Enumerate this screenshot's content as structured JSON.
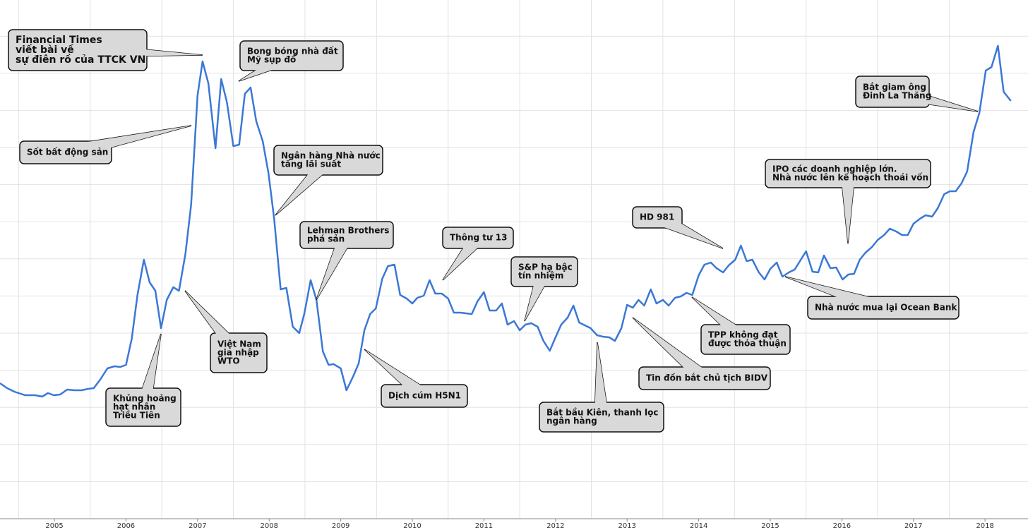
{
  "chart_data": {
    "type": "line",
    "series": [
      {
        "color": "#3a78d6",
        "x": [
          2004.24,
          2004.34,
          2004.44,
          2004.59,
          2004.73,
          2004.83,
          2004.91,
          2004.99,
          2005.08,
          2005.18,
          2005.28,
          2005.38,
          2005.47,
          2005.55,
          2005.64,
          2005.74,
          2005.84,
          2005.92,
          2006.0,
          2006.08,
          2006.16,
          2006.25,
          2006.33,
          2006.41,
          2006.49,
          2006.57,
          2006.66,
          2006.74,
          2006.83,
          2006.91,
          2007.0,
          2007.07,
          2007.15,
          2007.25,
          2007.33,
          2007.41,
          2007.5,
          2007.58,
          2007.66,
          2007.74,
          2007.82,
          2007.91,
          2007.99,
          2008.07,
          2008.16,
          2008.24,
          2008.33,
          2008.42,
          2008.49,
          2008.58,
          2008.66,
          2008.75,
          2008.83,
          2008.9,
          2009.0,
          2009.08,
          2009.17,
          2009.25,
          2009.33,
          2009.41,
          2009.49,
          2009.58,
          2009.66,
          2009.75,
          2009.83,
          2009.92,
          2010.0,
          2010.07,
          2010.16,
          2010.24,
          2010.32,
          2010.41,
          2010.5,
          2010.58,
          2010.67,
          2010.75,
          2010.83,
          2010.91,
          2011.0,
          2011.08,
          2011.17,
          2011.25,
          2011.33,
          2011.42,
          2011.5,
          2011.58,
          2011.66,
          2011.75,
          2011.83,
          2011.92,
          2012.0,
          2012.08,
          2012.17,
          2012.25,
          2012.33,
          2012.41,
          2012.49,
          2012.58,
          2012.66,
          2012.75,
          2012.83,
          2012.92,
          2013.0,
          2013.08,
          2013.16,
          2013.24,
          2013.33,
          2013.41,
          2013.5,
          2013.58,
          2013.67,
          2013.75,
          2013.83,
          2013.91,
          2014.0,
          2014.08,
          2014.17,
          2014.25,
          2014.34,
          2014.42,
          2014.51,
          2014.59,
          2014.67,
          2014.75,
          2014.84,
          2014.92,
          2015.0,
          2015.09,
          2015.17,
          2015.26,
          2015.34,
          2015.42,
          2015.5,
          2015.59,
          2015.67,
          2015.75,
          2015.84,
          2015.92,
          2016.01,
          2016.09,
          2016.17,
          2016.25,
          2016.33,
          2016.42,
          2016.5,
          2016.59,
          2016.67,
          2016.76,
          2016.84,
          2016.92,
          2017.0,
          2017.09,
          2017.17,
          2017.26,
          2017.34,
          2017.43,
          2017.51,
          2017.59,
          2017.67,
          2017.75,
          2017.84,
          2017.92,
          2018.01,
          2018.09,
          2018.18,
          2018.26,
          2018.36
        ],
        "values": [
          254,
          240,
          230,
          220,
          220,
          216,
          226,
          220,
          222,
          236,
          234,
          234,
          238,
          240,
          264,
          296,
          302,
          300,
          306,
          380,
          504,
          604,
          540,
          516,
          410,
          490,
          526,
          516,
          620,
          760,
          1070,
          1166,
          1104,
          920,
          1116,
          1050,
          926,
          930,
          1074,
          1092,
          996,
          940,
          850,
          720,
          520,
          524,
          414,
          396,
          450,
          546,
          490,
          344,
          306,
          308,
          296,
          234,
          272,
          310,
          404,
          450,
          466,
          550,
          586,
          590,
          504,
          494,
          480,
          496,
          502,
          546,
          508,
          508,
          494,
          454,
          454,
          452,
          450,
          486,
          512,
          460,
          460,
          480,
          420,
          430,
          404,
          420,
          424,
          414,
          374,
          346,
          384,
          420,
          440,
          474,
          426,
          418,
          410,
          390,
          386,
          384,
          374,
          410,
          476,
          468,
          490,
          474,
          520,
          480,
          490,
          474,
          496,
          500,
          510,
          504,
          560,
          590,
          596,
          580,
          568,
          588,
          604,
          644,
          600,
          604,
          568,
          548,
          578,
          596,
          556,
          568,
          576,
          602,
          628,
          570,
          568,
          616,
          580,
          582,
          548,
          562,
          564,
          604,
          624,
          640,
          660,
          674,
          692,
          684,
          674,
          674,
          706,
          720,
          730,
          726,
          750,
          790,
          798,
          798,
          820,
          854,
          966,
          1020,
          1140,
          1150,
          1210,
          1080,
          1054
        ]
      }
    ],
    "xlim": [
      2004.24,
      2018.6
    ],
    "ylim": [
      -130,
      1340
    ],
    "xticks": [
      2005,
      2006,
      2007,
      2008,
      2009,
      2010,
      2011,
      2012,
      2013,
      2014,
      2015,
      2016,
      2017,
      2018
    ],
    "grid": true,
    "annotations": [
      {
        "lines": [
          "Financial Times",
          "viết bài về",
          "sự điên rồ của TTCK VN"
        ]
      },
      {
        "lines": [
          "Bong bóng nhà đất",
          "Mỹ sụp đổ"
        ]
      },
      {
        "lines": [
          "Sốt bất động sản"
        ]
      },
      {
        "lines": [
          "Ngân hàng Nhà nước",
          "tăng lãi suất"
        ]
      },
      {
        "lines": [
          "Lehman Brothers",
          "phá sản"
        ]
      },
      {
        "lines": [
          "Thông tư 13"
        ]
      },
      {
        "lines": [
          "S&P hạ bậc",
          "tín nhiệm"
        ]
      },
      {
        "lines": [
          "HD 981"
        ]
      },
      {
        "lines": [
          "IPO các doanh nghiệp lớn.",
          "Nhà nước lên kế hoạch thoái vốn"
        ]
      },
      {
        "lines": [
          "Bắt giam ông",
          "Đinh La Thăng"
        ]
      },
      {
        "lines": [
          "Khủng hoảng",
          "hạt nhân",
          "Triều Tiên"
        ]
      },
      {
        "lines": [
          "Việt Nam",
          "gia nhập",
          "WTO"
        ]
      },
      {
        "lines": [
          "Dịch cúm H5N1"
        ]
      },
      {
        "lines": [
          "Bắt bầu Kiên, thanh lọc",
          "ngân hàng"
        ]
      },
      {
        "lines": [
          "Tin đồn bắt chủ tịch BIDV"
        ]
      },
      {
        "lines": [
          "TPP không đạt",
          "được thỏa thuận"
        ]
      },
      {
        "lines": [
          "Nhà nước mua lại Ocean Bank"
        ]
      }
    ]
  }
}
